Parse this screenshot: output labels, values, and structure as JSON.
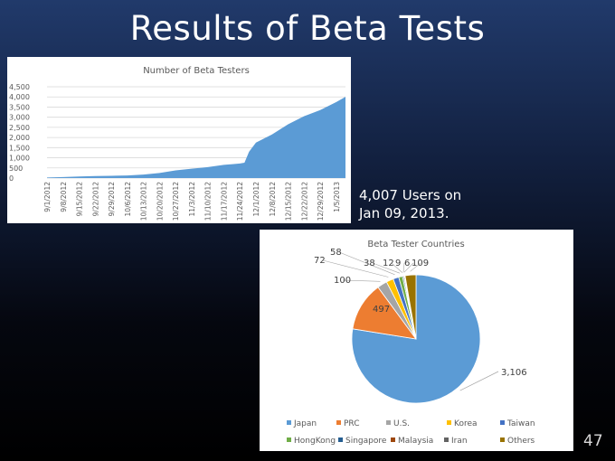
{
  "slide": {
    "title": "Results of Beta Tests",
    "caption_line1": "4,007 Users on",
    "caption_line2": "Jan 09, 2013.",
    "page_number": "47"
  },
  "colors": {
    "area_fill": "#5b9bd5",
    "gridline": "#d9d9d9",
    "axis_text": "#595959"
  },
  "chart_data": [
    {
      "type": "area",
      "title": "Number of Beta Testers",
      "xlabel": "",
      "ylabel": "",
      "ylim": [
        0,
        4500
      ],
      "yticks": [
        0,
        500,
        1000,
        1500,
        2000,
        2500,
        3000,
        3500,
        4000,
        4500
      ],
      "ytick_labels": [
        "0",
        "500",
        "1,000",
        "1,500",
        "2,000",
        "2,500",
        "3,000",
        "3,500",
        "4,000",
        "4,500"
      ],
      "xtick_labels": [
        "9/1/2012",
        "9/8/2012",
        "9/15/2012",
        "9/22/2012",
        "9/29/2012",
        "10/6/2012",
        "10/13/2012",
        "10/20/2012",
        "10/27/2012",
        "11/3/2012",
        "11/10/2012",
        "11/17/2012",
        "11/24/2012",
        "12/1/2012",
        "12/8/2012",
        "12/15/2012",
        "12/22/2012",
        "12/29/2012",
        "1/5/2013"
      ],
      "grid": true,
      "legend": "none",
      "series": [
        {
          "x": [
            "2012-09-01",
            "2012-09-08",
            "2012-09-15",
            "2012-09-22",
            "2012-09-29",
            "2012-10-06",
            "2012-10-13",
            "2012-10-20",
            "2012-10-27",
            "2012-11-03",
            "2012-11-10",
            "2012-11-17",
            "2012-11-24",
            "2012-11-26",
            "2012-11-28",
            "2012-12-01",
            "2012-12-08",
            "2012-12-15",
            "2012-12-22",
            "2012-12-29",
            "2013-01-05",
            "2013-01-09"
          ],
          "values": [
            30,
            50,
            80,
            100,
            110,
            130,
            170,
            250,
            380,
            460,
            540,
            650,
            720,
            760,
            1300,
            1750,
            2150,
            2650,
            3050,
            3350,
            3750,
            4007
          ]
        }
      ]
    },
    {
      "type": "pie",
      "title": "Beta Tester Countries",
      "legend": "bottom",
      "categories": [
        "Japan",
        "PRC",
        "U.S.",
        "Korea",
        "Taiwan",
        "HongKong",
        "Singapore",
        "Malaysia",
        "Iran",
        "Others"
      ],
      "values": [
        3106,
        497,
        100,
        72,
        58,
        38,
        12,
        9,
        6,
        109
      ],
      "data_labels": [
        "3,106",
        "497",
        "100",
        "72",
        "58",
        "38",
        "12",
        "9",
        "6",
        "109"
      ],
      "colors": [
        "#5b9bd5",
        "#ed7d31",
        "#a5a5a5",
        "#ffc000",
        "#4472c4",
        "#70ad47",
        "#255e91",
        "#9e480e",
        "#636363",
        "#997300"
      ]
    }
  ]
}
